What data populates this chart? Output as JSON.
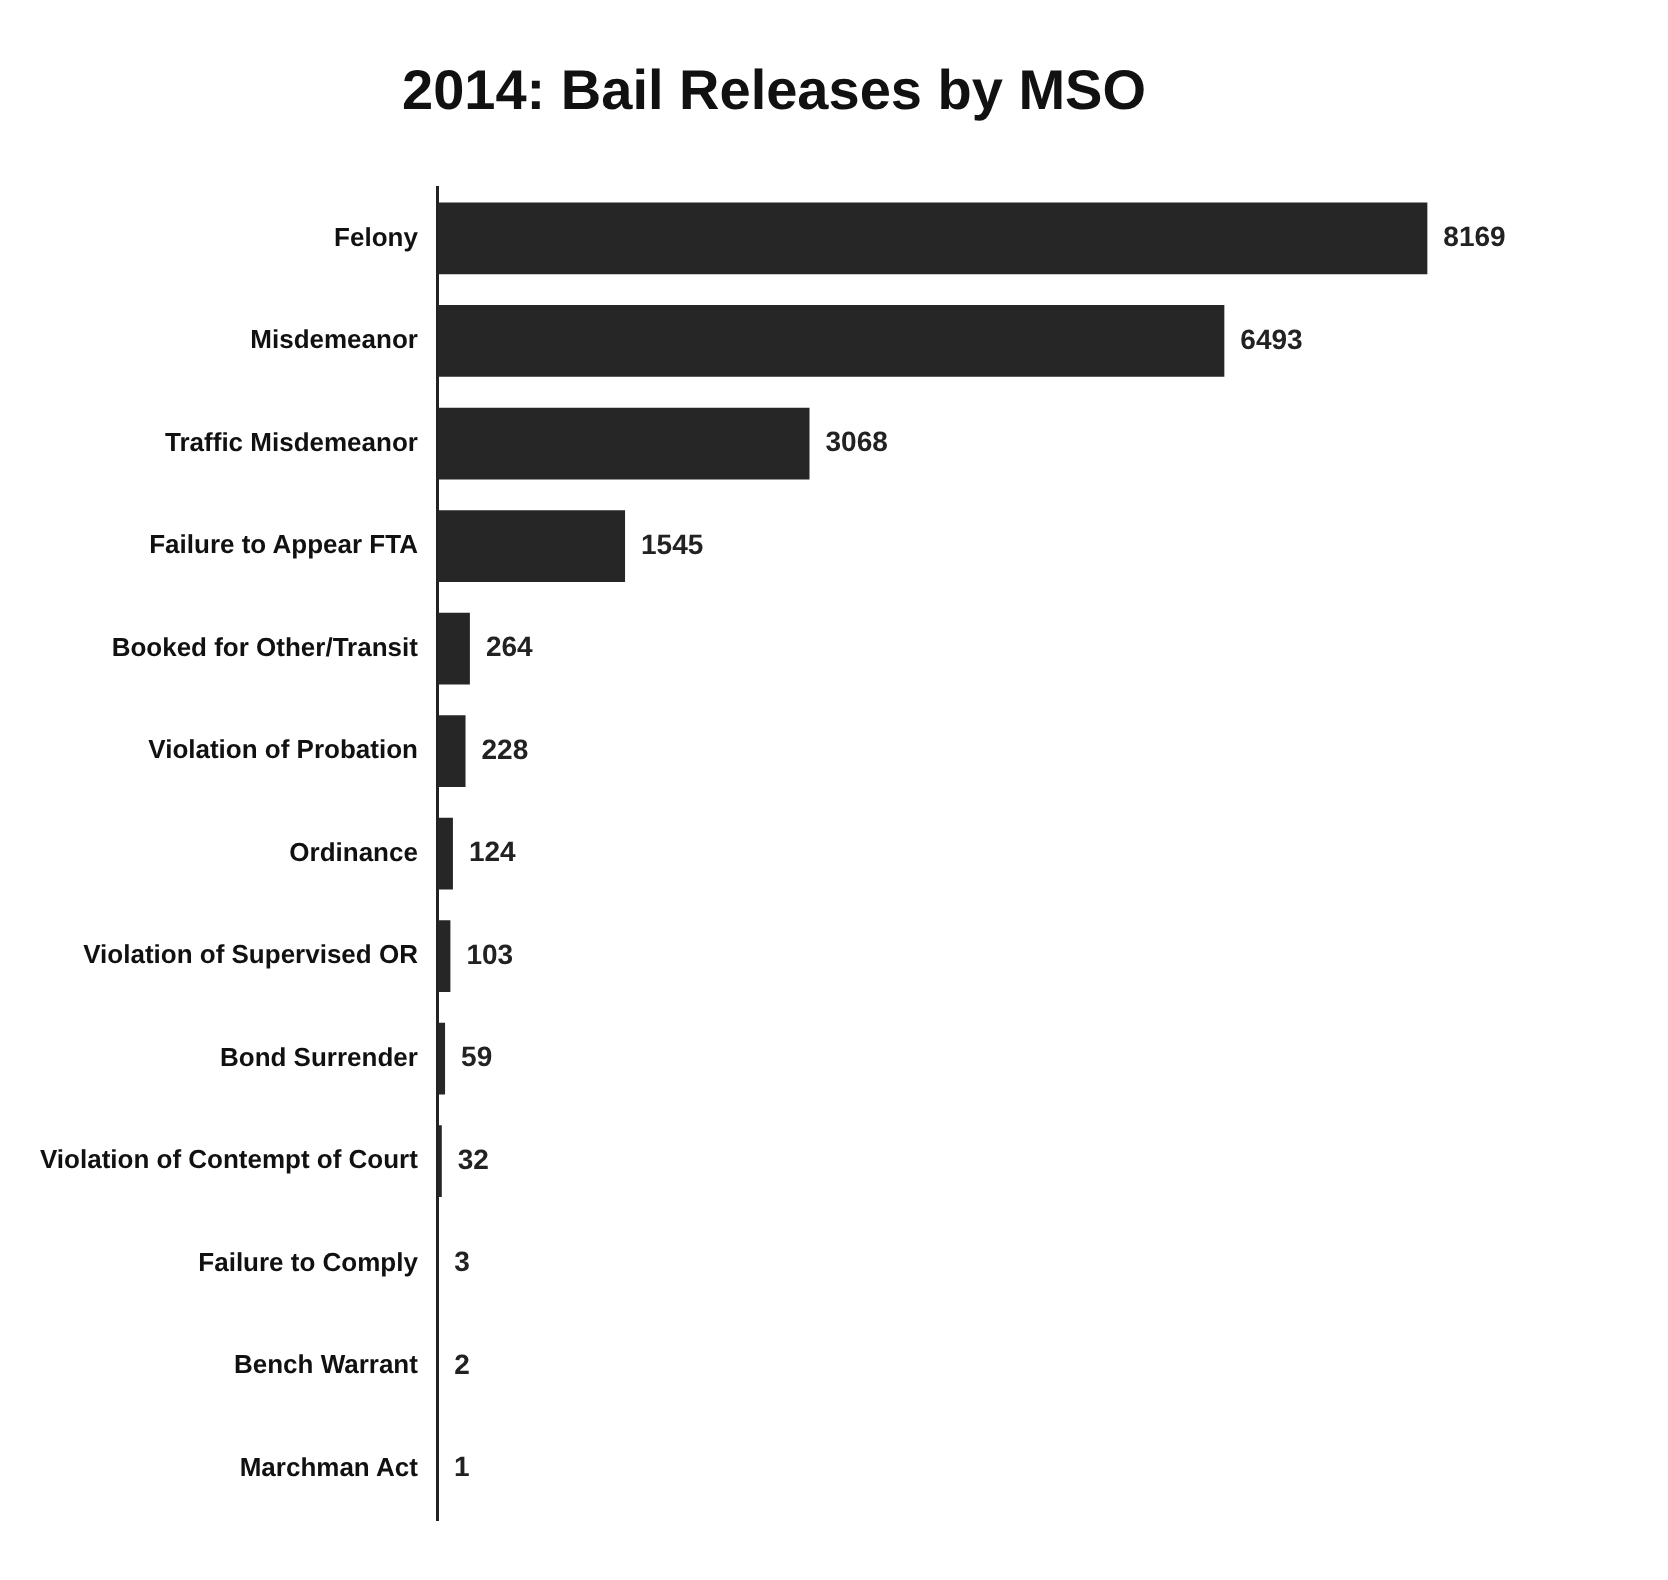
{
  "chart_data": {
    "type": "bar",
    "orientation": "horizontal",
    "title": "2014: Bail Releases by MSO",
    "categories": [
      "Felony",
      "Misdemeanor",
      "Traffic Misdemeanor",
      "Failure to Appear FTA",
      "Booked for Other/Transit",
      "Violation of Probation",
      "Ordinance",
      "Violation of Supervised OR",
      "Bond Surrender",
      "Violation of Contempt of Court",
      "Failure to Comply",
      "Bench Warrant",
      "Marchman Act"
    ],
    "values": [
      8169,
      6493,
      3068,
      1545,
      264,
      228,
      124,
      103,
      59,
      32,
      3,
      2,
      1
    ],
    "color": "#262626",
    "data_labels": true
  }
}
